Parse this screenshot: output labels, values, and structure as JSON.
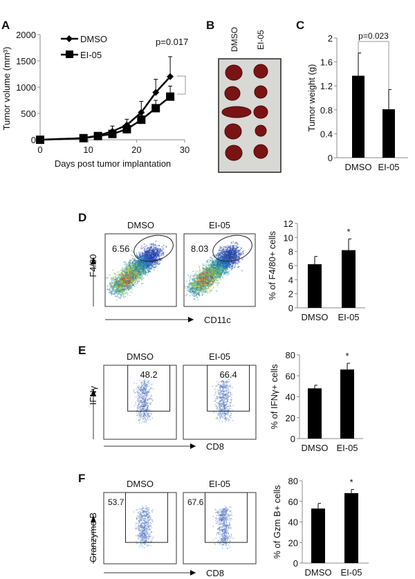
{
  "panel_letters": [
    "A",
    "B",
    "C",
    "D",
    "E",
    "F"
  ],
  "colors": {
    "bar": "#000000",
    "bracket": "#999999",
    "flow_low": "#2a4fb0",
    "flow_high": "#e02010",
    "photo_bg": "#dcdcda",
    "tumor": "#7a1414"
  },
  "panel_b": {
    "columns": [
      "DMSO",
      "EI-05"
    ]
  },
  "flow": {
    "D": {
      "conditions": [
        "DMSO",
        "EI-05"
      ],
      "gate_values": [
        "6.56",
        "8.03"
      ],
      "y_label": "F4/80",
      "x_label": "CD11c",
      "gate_shape": "ellipse"
    },
    "E": {
      "conditions": [
        "DMSO",
        "EI-05"
      ],
      "gate_values": [
        "48.2",
        "66.4"
      ],
      "y_label": "IFNγ",
      "x_label": "CD8",
      "gate_shape": "rectangle"
    },
    "F": {
      "conditions": [
        "DMSO",
        "EI-05"
      ],
      "gate_values": [
        "53.7",
        "67.6"
      ],
      "y_label": "Granzyme B",
      "x_label": "CD8",
      "gate_shape": "rectangle"
    }
  },
  "chart_data": [
    {
      "panel": "A",
      "type": "line",
      "xlabel": "Days post tumor implantation",
      "ylabel": "Tumor volume (mm³)",
      "xlim": [
        0,
        30
      ],
      "ylim": [
        0,
        2000
      ],
      "xticks": [
        "0",
        "10",
        "20",
        "30"
      ],
      "yticks": [
        "0",
        "500",
        "1000",
        "1500",
        "2000"
      ],
      "annotation": "p=0.017",
      "legend": "top-left",
      "x": [
        0,
        9,
        12,
        15,
        18,
        21,
        24,
        27
      ],
      "series": [
        {
          "name": "DMSO",
          "marker": "diamond",
          "values": [
            0,
            30,
            80,
            160,
            280,
            520,
            900,
            1200
          ],
          "error": [
            0,
            10,
            30,
            100,
            110,
            210,
            250,
            380
          ]
        },
        {
          "name": "EI-05",
          "marker": "square",
          "values": [
            0,
            30,
            70,
            110,
            200,
            380,
            600,
            820
          ],
          "error": [
            0,
            10,
            20,
            40,
            60,
            80,
            150,
            200
          ]
        }
      ]
    },
    {
      "panel": "C",
      "type": "bar",
      "ylabel": "Tumor weight (g)",
      "ylim": [
        0,
        2
      ],
      "yticks": [
        "0",
        "0.4",
        "0.8",
        "1.2",
        "1.6",
        "2"
      ],
      "categories": [
        "DMSO",
        "EI-05"
      ],
      "values": [
        1.37,
        0.81
      ],
      "error": [
        0.38,
        0.33
      ],
      "annotation": "p=0.023"
    },
    {
      "panel": "D",
      "type": "bar",
      "ylabel": "% of F4/80+ cells",
      "ylim": [
        0,
        12
      ],
      "yticks": [
        "0",
        "2",
        "4",
        "6",
        "8",
        "10",
        "12"
      ],
      "categories": [
        "DMSO",
        "EI-05"
      ],
      "values": [
        6.2,
        8.2
      ],
      "error": [
        1.1,
        1.6
      ],
      "significance": [
        "",
        "*"
      ]
    },
    {
      "panel": "E",
      "type": "bar",
      "ylabel": "% of IFNγ+ cells",
      "ylim": [
        0,
        80
      ],
      "yticks": [
        "0",
        "20",
        "40",
        "60",
        "80"
      ],
      "categories": [
        "DMSO",
        "EI-05"
      ],
      "values": [
        48,
        66
      ],
      "error": [
        3,
        6
      ],
      "significance": [
        "",
        "*"
      ]
    },
    {
      "panel": "F",
      "type": "bar",
      "ylabel": "% of Gzm B+ cells",
      "ylim": [
        0,
        80
      ],
      "yticks": [
        "0",
        "20",
        "40",
        "60",
        "80"
      ],
      "categories": [
        "DMSO",
        "EI-05"
      ],
      "values": [
        53,
        68
      ],
      "error": [
        5,
        3.5
      ],
      "significance": [
        "",
        "*"
      ]
    }
  ]
}
